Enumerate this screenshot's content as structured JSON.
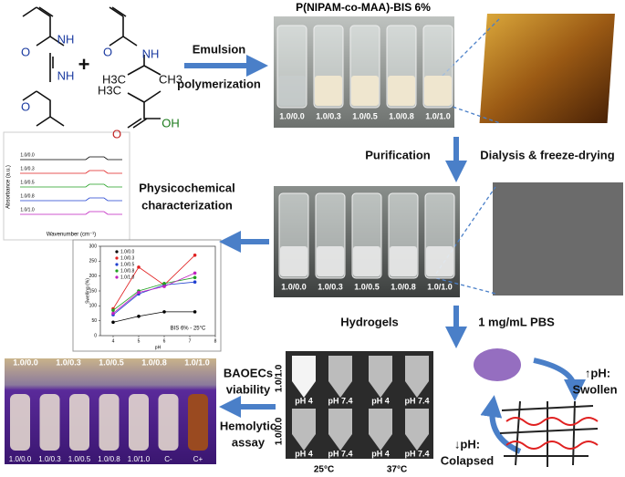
{
  "scheme": {
    "structures": [
      "NH",
      "NH",
      "O",
      "O",
      "+",
      "O",
      "NH",
      "H3C",
      "CH3",
      "H3C",
      "O",
      "OH"
    ],
    "steps": {
      "emulsion": [
        "Emulsion",
        "polymerization"
      ],
      "purification": "Purification",
      "dialysis": "Dialysis & freeze-drying",
      "characterization": [
        "Physicochemical",
        "characterization"
      ],
      "hydrogels": "Hydrogels",
      "pbs": "1 mg/mL PBS",
      "viability": [
        "BAOECs",
        "viability"
      ],
      "hemolytic": [
        "Hemolytic",
        "assay"
      ]
    },
    "nanoparticles": {
      "title": "P(NIPAM-co-MAA)-BIS 6%",
      "labels": [
        "1.0/0.0",
        "1.0/0.3",
        "1.0/0.5",
        "1.0/0.8",
        "1.0/1.0"
      ]
    },
    "freeze_dried": {
      "labels": [
        "1.0/0.0",
        "1.0/0.3",
        "1.0/0.5",
        "1.0/0.8",
        "1.0/1.0"
      ]
    },
    "hydrogel_photo": {
      "rows": [
        "1.0/1.0",
        "1.0/0.0"
      ],
      "ph": [
        "pH 4",
        "pH 7.4",
        "pH 4",
        "pH 7.4"
      ],
      "temps": [
        "25°C",
        "37°C"
      ]
    },
    "response": {
      "swollen": [
        "↑pH:",
        "Swollen"
      ],
      "collapsed": [
        "↓pH:",
        "Colapsed"
      ]
    },
    "cells": {
      "labels": [
        "1.0/0.0",
        "1.0/0.3",
        "1.0/0.5",
        "1.0/0.8",
        "1.0/1.0"
      ],
      "tubes": [
        "1.0/0.0",
        "1.0/0.3",
        "1.0/0.5",
        "1.0/0.8",
        "1.0/1.0",
        "C-",
        "C+"
      ]
    },
    "ftir": {
      "y_label": "Absorbance (a.u.)",
      "x_label": "Wavenumber (cm⁻¹)",
      "labels": [
        "1.0/0.0",
        "1.0/0.3",
        "1.0/0.5",
        "1.0/0.8",
        "1.0/1.0"
      ]
    }
  },
  "chart_data": {
    "type": "line",
    "x_label": "pH",
    "y_label": "Swelling (%)",
    "annotation": "BIS 6% - 25°C",
    "x": [
      4,
      5,
      6,
      7.2
    ],
    "series": [
      {
        "name": "1.0/0.0",
        "color": "#000000",
        "values": [
          45,
          65,
          80,
          80
        ]
      },
      {
        "name": "1.0/0.3",
        "color": "#e02020",
        "values": [
          90,
          230,
          170,
          270
        ]
      },
      {
        "name": "1.0/0.5",
        "color": "#2040d0",
        "values": [
          70,
          140,
          170,
          180
        ]
      },
      {
        "name": "1.0/0.8",
        "color": "#20a020",
        "values": [
          85,
          150,
          175,
          195
        ]
      },
      {
        "name": "1.0/1.0",
        "color": "#c020c0",
        "values": [
          75,
          145,
          165,
          210
        ]
      }
    ],
    "xlim": [
      3.5,
      8
    ],
    "ylim": [
      0,
      300
    ],
    "xticks": [
      4,
      5,
      6,
      7,
      8
    ],
    "yticks": [
      0,
      50,
      100,
      150,
      200,
      250,
      300
    ]
  }
}
